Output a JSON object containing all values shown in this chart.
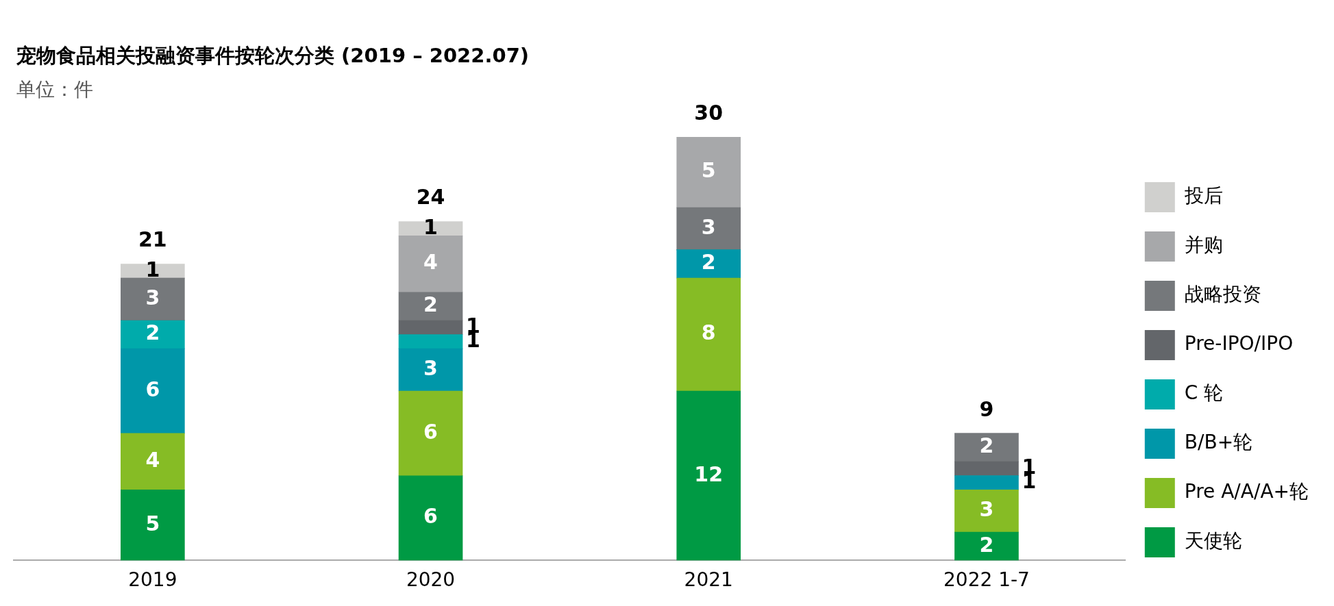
{
  "chart_data": {
    "type": "bar",
    "title": "宠物食品相关投融资事件按轮次分类 (2019 – 2022.07)",
    "subtitle": "单位：件",
    "categories": [
      "2019",
      "2020",
      "2021",
      "2022 1-7"
    ],
    "stacked": true,
    "legend": "right",
    "grid": false,
    "tick_labels": "x",
    "series": [
      {
        "name": "天使轮",
        "color": "#009a44",
        "values": [
          5,
          6,
          12,
          2
        ],
        "value_labels": [
          "5",
          "6",
          "12",
          "2"
        ]
      },
      {
        "name": "Pre A/A/A+轮",
        "color": "#86bc25",
        "values": [
          4,
          6,
          8,
          3
        ],
        "value_labels": [
          "4",
          "6",
          "8",
          "3"
        ]
      },
      {
        "name": "B/B+轮",
        "color": "#0097a9",
        "values": [
          6,
          3,
          2,
          1
        ],
        "value_labels": [
          "6",
          "3",
          "2",
          "1"
        ]
      },
      {
        "name": "C 轮",
        "color": "#00abab",
        "values": [
          2,
          1,
          0,
          0
        ],
        "value_labels": [
          "2",
          "1",
          null,
          null
        ]
      },
      {
        "name": "Pre-IPO/IPO",
        "color": "#63666a",
        "values": [
          0,
          1,
          0,
          1
        ],
        "value_labels": [
          null,
          "1",
          null,
          "1"
        ]
      },
      {
        "name": "战略投资",
        "color": "#75787b",
        "values": [
          3,
          2,
          3,
          2
        ],
        "value_labels": [
          "3",
          "2",
          "3",
          "2"
        ]
      },
      {
        "name": "并购",
        "color": "#a7a8aa",
        "values": [
          0,
          4,
          5,
          0
        ],
        "value_labels": [
          null,
          "4",
          "5",
          null
        ]
      },
      {
        "name": "投后",
        "color": "#d0d0ce",
        "values": [
          1,
          1,
          0,
          0
        ],
        "value_labels": [
          "1",
          "1",
          null,
          null
        ]
      }
    ],
    "totals": [
      "21",
      "24",
      "30",
      "9"
    ]
  }
}
